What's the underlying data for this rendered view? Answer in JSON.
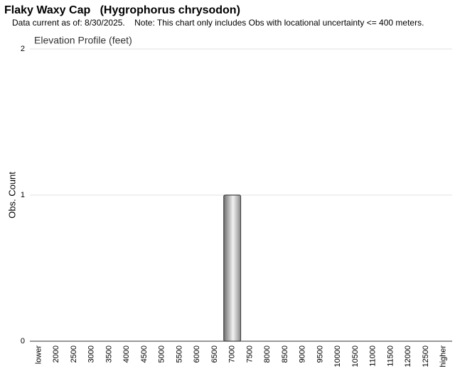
{
  "chart_data": {
    "type": "bar",
    "title": "Flaky Waxy Cap   (Hygrophorus chrysodon)",
    "subtitle": "Data current as of: 8/30/2025.    Note: This chart only includes Obs with locational uncertainty <= 400 meters.",
    "chart_title": "Elevation Profile (feet)",
    "y_label": "Obs. Count",
    "categories": [
      "lower",
      "2000",
      "2500",
      "3000",
      "3500",
      "4000",
      "4500",
      "5000",
      "5500",
      "6000",
      "6500",
      "7000",
      "7500",
      "8000",
      "8500",
      "9000",
      "9500",
      "10000",
      "10500",
      "11000",
      "11500",
      "12000",
      "12500",
      "higher"
    ],
    "values": [
      0,
      0,
      0,
      0,
      0,
      0,
      0,
      0,
      0,
      0,
      0,
      1,
      0,
      0,
      0,
      0,
      0,
      0,
      0,
      0,
      0,
      0,
      0,
      0
    ],
    "color": "#9a9a9a",
    "ylim": [
      0,
      2
    ],
    "yticks": [
      0,
      1,
      2
    ],
    "grid": true
  }
}
